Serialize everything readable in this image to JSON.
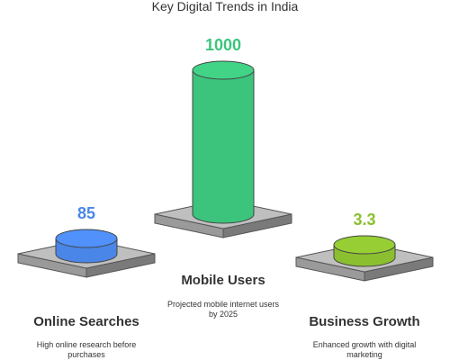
{
  "chart_data": {
    "type": "bar",
    "title": "Key Digital Trends in India",
    "categories": [
      "Online Searches",
      "Mobile Users",
      "Business Growth"
    ],
    "values": [
      85,
      1000,
      3.3
    ],
    "value_labels": [
      "85",
      "1000",
      "3.3"
    ],
    "descriptions": [
      [
        "High online research before",
        "purchases"
      ],
      [
        "Projected mobile internet users",
        "by 2025"
      ],
      [
        "Enhanced growth with digital",
        "marketing"
      ]
    ],
    "colors": [
      "#4a86e8",
      "#3cc47c",
      "#8bbf30"
    ]
  }
}
